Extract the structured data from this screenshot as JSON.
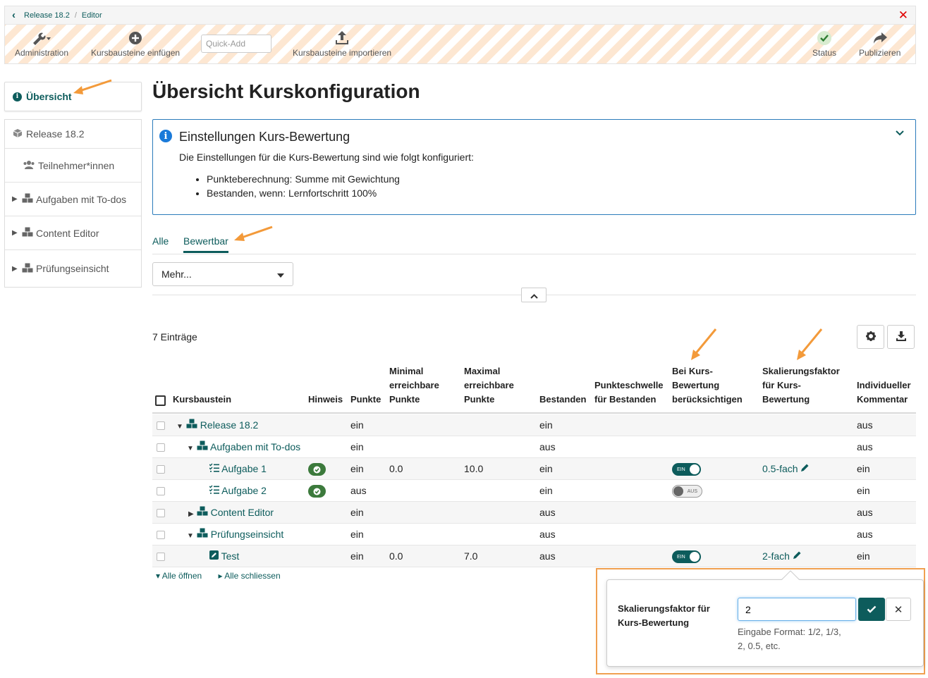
{
  "breadcrumb": {
    "items": [
      "Release 18.2",
      "Editor"
    ]
  },
  "toolbar": {
    "administration": "Administration",
    "insert": "Kursbausteine einfügen",
    "quick_add_placeholder": "Quick-Add",
    "import": "Kursbausteine importieren",
    "status": "Status",
    "publish": "Publizieren"
  },
  "sidebar": {
    "overview": "Übersicht",
    "items": [
      {
        "label": "Release 18.2"
      },
      {
        "label": "Teilnehmer*innen"
      },
      {
        "label": "Aufgaben mit To-dos"
      },
      {
        "label": "Content Editor"
      },
      {
        "label": "Prüfungseinsicht"
      }
    ]
  },
  "page_title": "Übersicht Kurskonfiguration",
  "info": {
    "title": "Einstellungen Kurs-Bewertung",
    "description": "Die Einstellungen für die Kurs-Bewertung sind wie folgt konfiguriert:",
    "bullets": [
      "Punkteberechnung: Summe mit Gewichtung",
      "Bestanden, wenn: Lernfortschritt 100%"
    ]
  },
  "tabs": [
    "Alle",
    "Bewertbar"
  ],
  "filter": {
    "selected": "Mehr..."
  },
  "count": "7 Einträge",
  "table": {
    "headers": {
      "node": "Kursbaustein",
      "hint": "Hinweis",
      "points": "Punkte",
      "min_l1": "Minimal",
      "min_l2": "erreichbare",
      "min_l3": "Punkte",
      "max_l1": "Maximal",
      "max_l2": "erreichbare",
      "max_l3": "Punkte",
      "passed": "Bestanden",
      "thr_l1": "Punkteschwelle",
      "thr_l2": "für Bestanden",
      "cons_l1": "Bei Kurs-",
      "cons_l2": "Bewertung",
      "cons_l3": "berücksichtigen",
      "scale_l1": "Skalierungsfaktor",
      "scale_l2": "für Kurs-",
      "scale_l3": "Bewertung",
      "comm_l1": "Individueller",
      "comm_l2": "Kommentar"
    },
    "rows": [
      {
        "label": "Release 18.2",
        "points": "ein",
        "min": "",
        "max": "",
        "passed": "ein",
        "toggle": "",
        "scale": "",
        "comment": "aus"
      },
      {
        "label": "Aufgaben mit To-dos",
        "points": "ein",
        "min": "",
        "max": "",
        "passed": "aus",
        "toggle": "",
        "scale": "",
        "comment": "aus"
      },
      {
        "label": "Aufgabe 1",
        "points": "ein",
        "min": "0.0",
        "max": "10.0",
        "passed": "ein",
        "toggle": "EIN",
        "scale": "0.5-fach",
        "comment": "ein"
      },
      {
        "label": "Aufgabe 2",
        "points": "aus",
        "min": "",
        "max": "",
        "passed": "ein",
        "toggle": "AUS",
        "scale": "",
        "comment": "ein"
      },
      {
        "label": "Content Editor",
        "points": "ein",
        "min": "",
        "max": "",
        "passed": "aus",
        "toggle": "",
        "scale": "",
        "comment": "aus"
      },
      {
        "label": "Prüfungseinsicht",
        "points": "ein",
        "min": "",
        "max": "",
        "passed": "aus",
        "toggle": "",
        "scale": "",
        "comment": "aus"
      },
      {
        "label": "Test",
        "points": "ein",
        "min": "0.0",
        "max": "7.0",
        "passed": "aus",
        "toggle": "EIN",
        "scale": "2-fach",
        "comment": "ein"
      }
    ]
  },
  "tree_actions": {
    "open_all": "Alle öffnen",
    "close_all": "Alle schliessen"
  },
  "popover": {
    "label_l1": "Skalierungsfaktor für",
    "label_l2": "Kurs-Bewertung",
    "value": "2",
    "help_l1": "Eingabe Format: 1/2, 1/3,",
    "help_l2": "2, 0.5, etc."
  },
  "colors": {
    "accent": "#0d5c5c",
    "close": "#e00000",
    "annotation": "#f39a3a",
    "info": "#1a7ad9"
  }
}
